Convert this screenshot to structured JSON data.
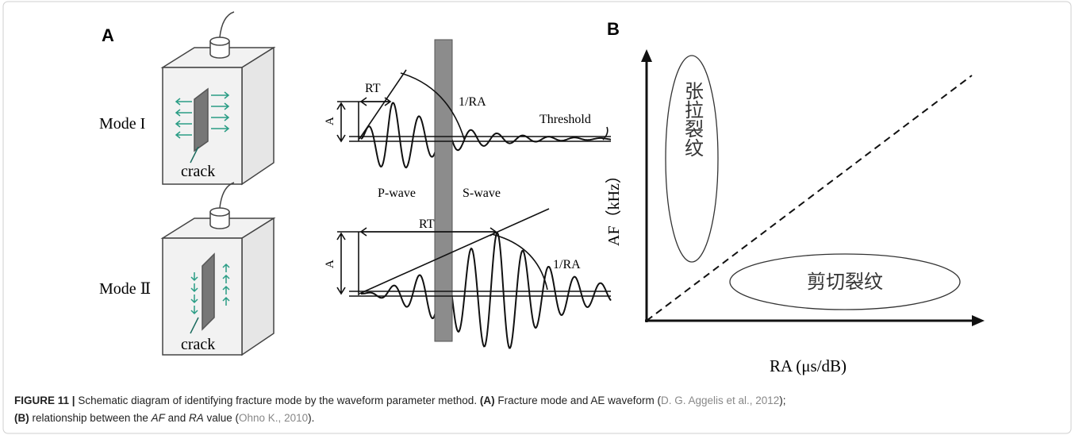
{
  "panel_a": {
    "label": "A",
    "mode_1": "Mode I",
    "mode_2": "Mode Ⅱ",
    "crack_1": "crack",
    "crack_2": "crack",
    "rt_1": "RT",
    "rt_2": "RT",
    "amp_1": "A",
    "amp_2": "A",
    "ra_1": "1/RA",
    "ra_2": "1/RA",
    "threshold": "Threshold",
    "p_wave": "P-wave",
    "s_wave": "S-wave"
  },
  "panel_b": {
    "label": "B",
    "y_axis": "AF（kHz）",
    "x_axis": "RA (μs/dB)",
    "tensile": "张拉裂纹",
    "shear": "剪切裂纹"
  },
  "caption": {
    "figure": "FIGURE 11 |",
    "text_1": "Schematic diagram of identifying fracture mode by the waveform parameter method.",
    "part_a": "(A)",
    "text_2": "Fracture mode and AE waveform (",
    "cite_1": "D. G. Aggelis et al., 2012",
    "text_3": ");",
    "part_b": "(B)",
    "text_4": "relationship between the",
    "af": "AF",
    "text_5": "and",
    "ra": "RA",
    "text_6": "value (",
    "cite_2": "Ohno K., 2010",
    "text_7": ")."
  }
}
